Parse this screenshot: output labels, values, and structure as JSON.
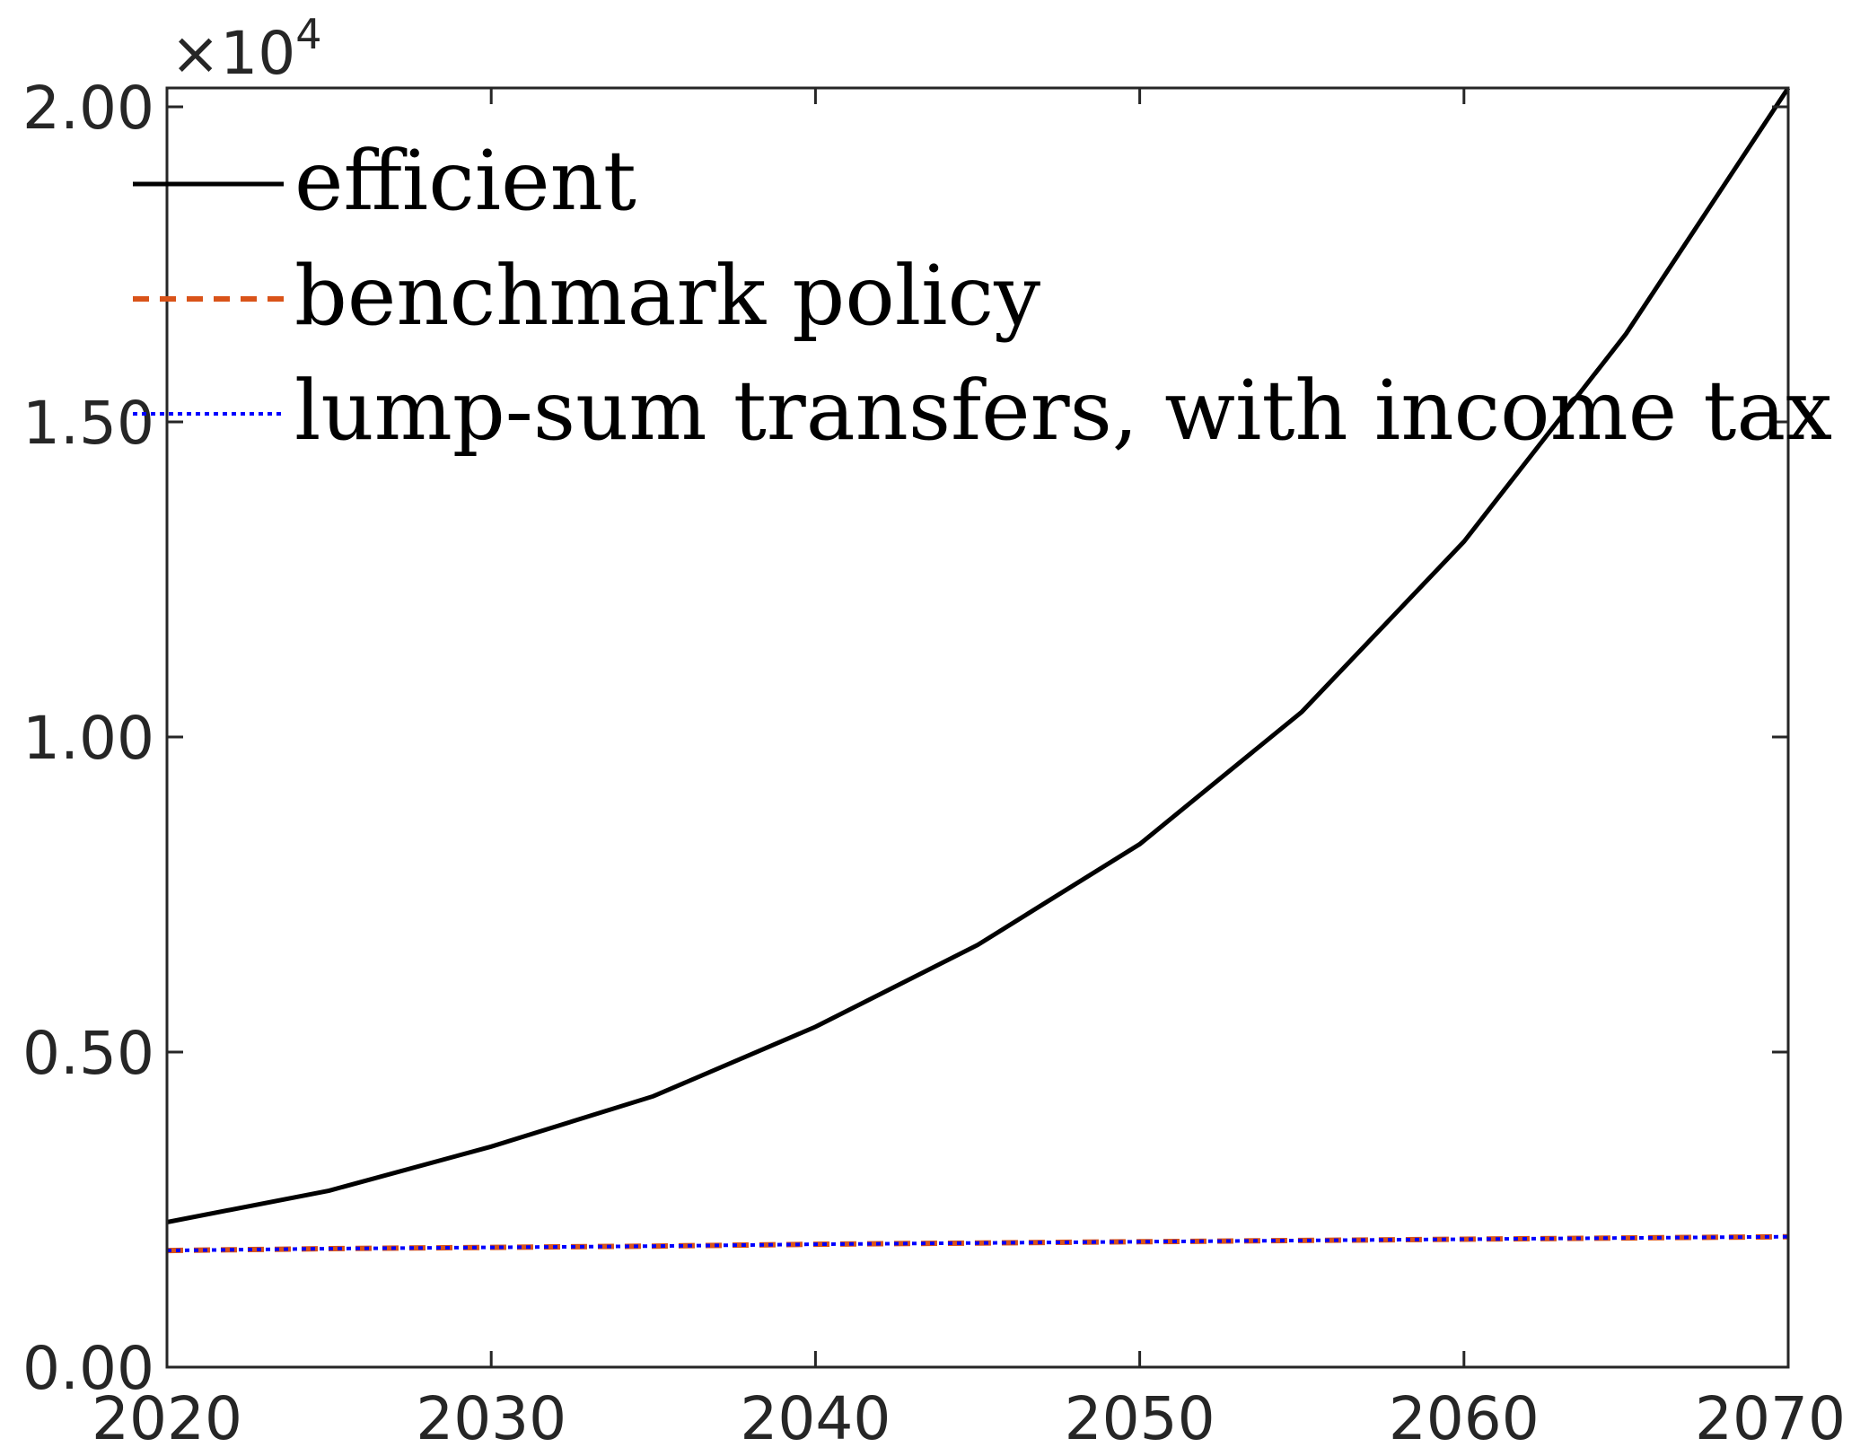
{
  "chart_data": {
    "type": "line",
    "title": "",
    "xlabel": "",
    "ylabel": "",
    "x": [
      2020,
      2025,
      2030,
      2035,
      2040,
      2045,
      2050,
      2055,
      2060,
      2065,
      2070
    ],
    "xlim": [
      2020,
      2070
    ],
    "ylim": [
      0,
      2.03
    ],
    "y_exponent_label": {
      "base": "×10",
      "power": "4"
    },
    "x_ticks": [
      2020,
      2030,
      2040,
      2050,
      2060,
      2070
    ],
    "x_tick_labels": [
      "2020",
      "2030",
      "2040",
      "2050",
      "2060",
      "2070"
    ],
    "y_ticks": [
      0,
      0.5,
      1.0,
      1.5,
      2.0
    ],
    "y_tick_labels": [
      "0.00",
      "0.50",
      "1.00",
      "1.50",
      "2.00"
    ],
    "grid": false,
    "legend_position": "top-left",
    "series": [
      {
        "name": "efficient",
        "color": "#000000",
        "style": "solid",
        "values": [
          0.23,
          0.28,
          0.35,
          0.43,
          0.54,
          0.67,
          0.83,
          1.04,
          1.31,
          1.64,
          2.03
        ]
      },
      {
        "name": "benchmark policy",
        "color": "#D95319",
        "style": "dashed",
        "values": [
          0.185,
          0.188,
          0.19,
          0.192,
          0.195,
          0.197,
          0.199,
          0.201,
          0.203,
          0.205,
          0.207
        ]
      },
      {
        "name": "lump-sum transfers, with income tax",
        "color": "#0000FF",
        "style": "dotted",
        "values": [
          0.185,
          0.188,
          0.19,
          0.192,
          0.195,
          0.197,
          0.199,
          0.201,
          0.203,
          0.205,
          0.207
        ]
      }
    ]
  }
}
